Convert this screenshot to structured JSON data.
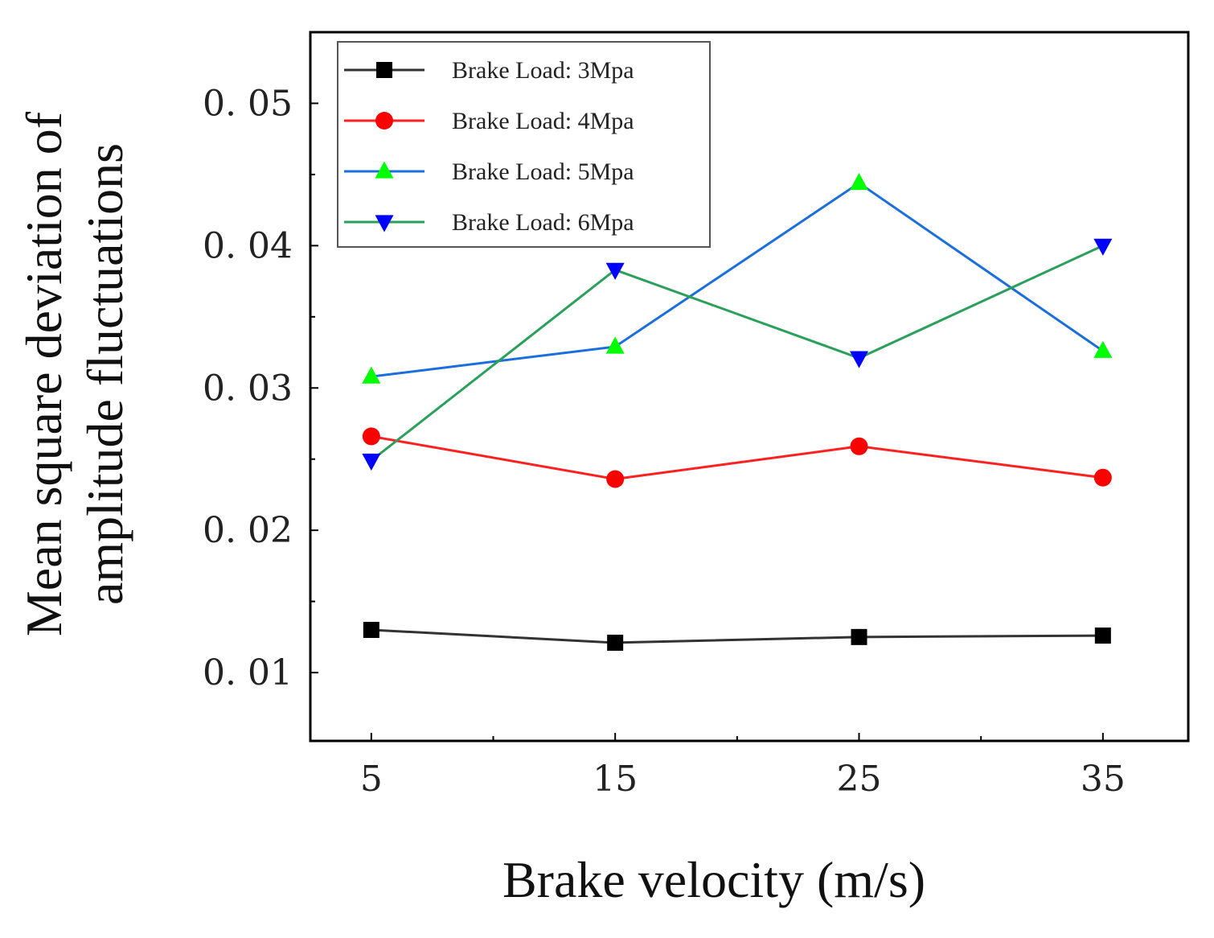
{
  "chart_data": {
    "type": "line",
    "x": [
      5,
      15,
      25,
      35
    ],
    "series": [
      {
        "name": "Brake Load: 3Mpa",
        "values": [
          0.013,
          0.0121,
          0.0125,
          0.0126
        ],
        "line_color": "#333333",
        "marker_color": "#000000",
        "marker": "square"
      },
      {
        "name": "Brake Load: 4Mpa",
        "values": [
          0.0266,
          0.0236,
          0.0259,
          0.0237
        ],
        "line_color": "#ff2020",
        "marker_color": "#ff0000",
        "marker": "circle"
      },
      {
        "name": "Brake Load: 5Mpa",
        "values": [
          0.0308,
          0.0329,
          0.0444,
          0.0326
        ],
        "line_color": "#1a6fdc",
        "marker_color": "#00ff00",
        "marker": "triangle-up"
      },
      {
        "name": "Brake Load: 6Mpa",
        "values": [
          0.0249,
          0.0383,
          0.0321,
          0.04
        ],
        "line_color": "#2aa05a",
        "marker_color": "#0000ff",
        "marker": "triangle-down"
      }
    ],
    "xlabel": "Brake velocity (m/s)",
    "ylabel_line1": "Mean square deviation of",
    "ylabel_line2": "amplitude fluctuations",
    "xlim": [
      2.5,
      38.5
    ],
    "ylim": [
      0.0052,
      0.055
    ],
    "xticks": [
      5,
      15,
      25,
      35
    ],
    "xtick_labels": [
      "5",
      "15",
      "25",
      "35"
    ],
    "yticks": [
      0.01,
      0.02,
      0.03,
      0.04,
      0.05
    ],
    "ytick_labels": [
      "0. 01",
      "0. 02",
      "0. 03",
      "0. 04",
      "0. 05"
    ],
    "legend_position": "top-left"
  }
}
